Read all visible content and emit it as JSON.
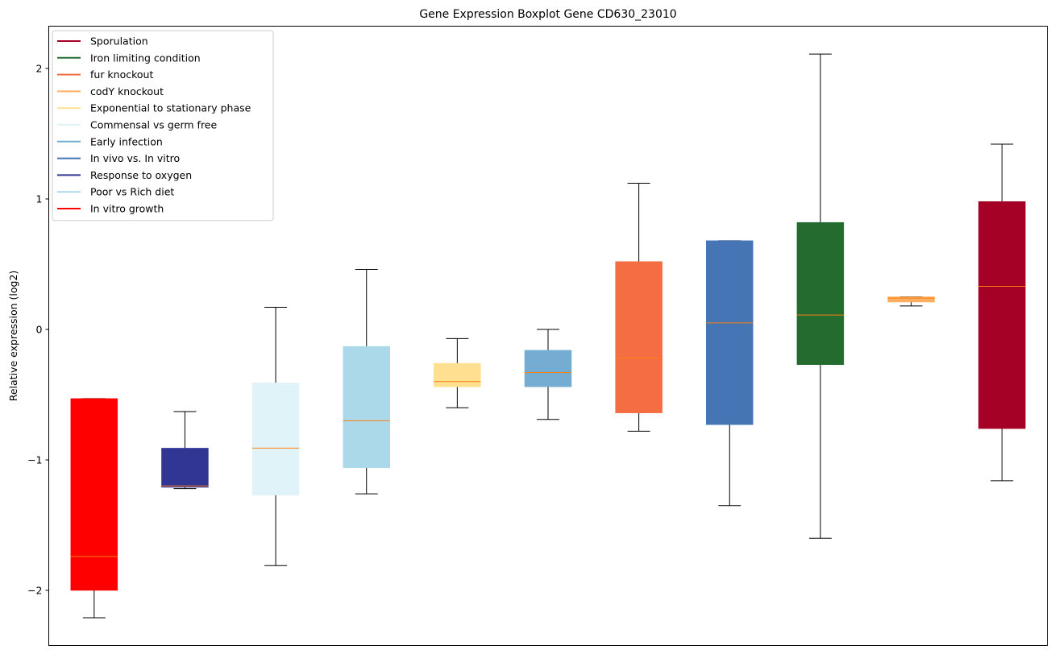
{
  "chart_data": {
    "type": "boxplot",
    "title": "Gene Expression Boxplot Gene CD630_23010",
    "xlabel": "",
    "ylabel": "Relative expression (log2)",
    "ylim": [
      -2.43,
      2.3
    ],
    "yticks": [
      2,
      1,
      0,
      -1,
      -2
    ],
    "ytick_labels": [
      "2",
      "1",
      "0",
      "−1",
      "−2"
    ],
    "grid": false,
    "legend_position": "top-left",
    "legend": [
      {
        "label": "Sporulation",
        "color": "#a50026"
      },
      {
        "label": "Iron limiting condition",
        "color": "#236b2e"
      },
      {
        "label": "fur knockout",
        "color": "#f46d43"
      },
      {
        "label": "codY knockout",
        "color": "#fdae61"
      },
      {
        "label": "Exponential to stationary phase",
        "color": "#fee090"
      },
      {
        "label": "Commensal vs germ free",
        "color": "#e0f3f8"
      },
      {
        "label": "Early infection",
        "color": "#74add1"
      },
      {
        "label": "In vivo vs. In vitro",
        "color": "#4575b4"
      },
      {
        "label": "Response to oxygen",
        "color": "#313695"
      },
      {
        "label": "Poor vs Rich diet",
        "color": "#abd9e9"
      },
      {
        "label": "In vitro growth",
        "color": "#ff0000"
      }
    ],
    "series": [
      {
        "name": "In vitro growth",
        "color": "#ff0000",
        "whisker_low": -2.21,
        "q1": -2.0,
        "median": -1.74,
        "q3": -0.53,
        "whisker_high": -0.53
      },
      {
        "name": "Response to oxygen",
        "color": "#313695",
        "whisker_low": -1.22,
        "q1": -1.21,
        "median": -1.2,
        "q3": -0.91,
        "whisker_high": -0.63
      },
      {
        "name": "Commensal vs germ free",
        "color": "#e0f3f8",
        "whisker_low": -1.81,
        "q1": -1.27,
        "median": -0.91,
        "q3": -0.41,
        "whisker_high": 0.17
      },
      {
        "name": "Poor vs Rich diet",
        "color": "#abd9e9",
        "whisker_low": -1.26,
        "q1": -1.06,
        "median": -0.7,
        "q3": -0.13,
        "whisker_high": 0.46
      },
      {
        "name": "Exponential to stationary phase",
        "color": "#fee090",
        "whisker_low": -0.6,
        "q1": -0.44,
        "median": -0.4,
        "q3": -0.26,
        "whisker_high": -0.07
      },
      {
        "name": "Early infection",
        "color": "#74add1",
        "whisker_low": -0.69,
        "q1": -0.44,
        "median": -0.33,
        "q3": -0.16,
        "whisker_high": 0.0
      },
      {
        "name": "fur knockout",
        "color": "#f46d43",
        "whisker_low": -0.78,
        "q1": -0.64,
        "median": -0.22,
        "q3": 0.52,
        "whisker_high": 1.12
      },
      {
        "name": "In vivo vs. In vitro",
        "color": "#4575b4",
        "whisker_low": -1.35,
        "q1": -0.73,
        "median": 0.05,
        "q3": 0.68,
        "whisker_high": 0.68
      },
      {
        "name": "Iron limiting condition",
        "color": "#236b2e",
        "whisker_low": -1.6,
        "q1": -0.27,
        "median": 0.11,
        "q3": 0.82,
        "whisker_high": 2.11
      },
      {
        "name": "codY knockout",
        "color": "#fdae61",
        "whisker_low": 0.18,
        "q1": 0.21,
        "median": 0.24,
        "q3": 0.25,
        "whisker_high": 0.25
      },
      {
        "name": "Sporulation",
        "color": "#a50026",
        "whisker_low": -1.16,
        "q1": -0.76,
        "median": 0.33,
        "q3": 0.98,
        "whisker_high": 1.42
      }
    ],
    "median_color": "#ff7f0e"
  }
}
